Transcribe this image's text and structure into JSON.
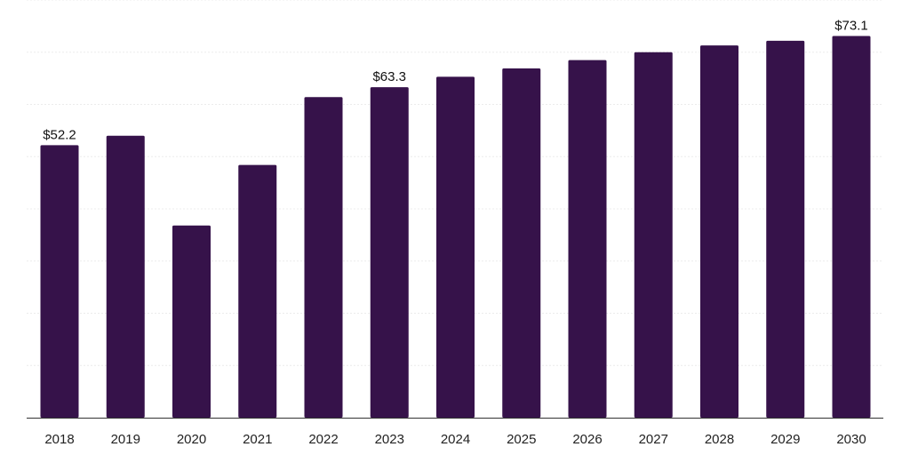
{
  "chart_data": {
    "type": "bar",
    "title": "",
    "xlabel": "",
    "ylabel": "",
    "categories": [
      "2018",
      "2019",
      "2020",
      "2021",
      "2022",
      "2023",
      "2024",
      "2025",
      "2026",
      "2027",
      "2028",
      "2029",
      "2030"
    ],
    "values": [
      52.2,
      54.0,
      36.8,
      48.4,
      61.4,
      63.3,
      65.3,
      66.9,
      68.5,
      70.0,
      71.3,
      72.2,
      73.1
    ],
    "data_labels": [
      {
        "category": "2018",
        "text": "$52.2"
      },
      {
        "category": "2023",
        "text": "$63.3"
      },
      {
        "category": "2030",
        "text": "$73.1"
      }
    ],
    "ylim": [
      0,
      80
    ],
    "grid": true,
    "bar_color": "#36124a"
  }
}
